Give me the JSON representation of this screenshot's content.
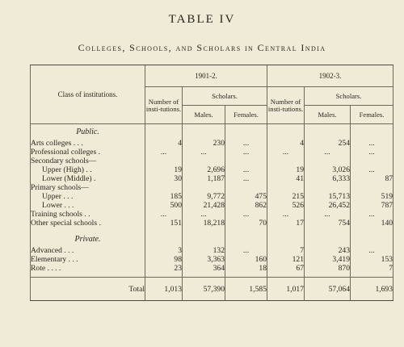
{
  "heading": {
    "number": "TABLE IV",
    "title": "Colleges, Schools, and Scholars in Central India"
  },
  "columns": {
    "class_header": "Class of institutions.",
    "year1": "1901-2.",
    "year2": "1902-3.",
    "number_header": "Number of insti-tutions.",
    "scholars_header": "Scholars.",
    "males": "Males.",
    "females": "Females."
  },
  "sections": [
    {
      "title": "Public.",
      "rows": [
        {
          "label": "Arts colleges . . .",
          "indent": false,
          "n1": "4",
          "m1": "230",
          "f1": "...",
          "n2": "4",
          "m2": "254",
          "f2": "..."
        },
        {
          "label": "Professional colleges .",
          "indent": false,
          "n1": "...",
          "m1": "...",
          "f1": "...",
          "n2": "...",
          "m2": "...",
          "f2": "..."
        },
        {
          "label": "Secondary schools—",
          "indent": false,
          "n1": "",
          "m1": "",
          "f1": "",
          "n2": "",
          "m2": "",
          "f2": ""
        },
        {
          "label": "Upper (High) . .",
          "indent": true,
          "n1": "19",
          "m1": "2,696",
          "f1": "...",
          "n2": "19",
          "m2": "3,026",
          "f2": "..."
        },
        {
          "label": "Lower (Middle) .",
          "indent": true,
          "n1": "30",
          "m1": "1,187",
          "f1": "...",
          "n2": "41",
          "m2": "6,333",
          "f2": "87"
        },
        {
          "label": "Primary schools—",
          "indent": false,
          "n1": "",
          "m1": "",
          "f1": "",
          "n2": "",
          "m2": "",
          "f2": ""
        },
        {
          "label": "Upper . . .",
          "indent": true,
          "n1": "185",
          "m1": "9,772",
          "f1": "475",
          "n2": "215",
          "m2": "15,713",
          "f2": "519"
        },
        {
          "label": "Lower . . .",
          "indent": true,
          "n1": "500",
          "m1": "21,428",
          "f1": "862",
          "n2": "526",
          "m2": "26,452",
          "f2": "787"
        },
        {
          "label": "Training schools . .",
          "indent": false,
          "n1": "...",
          "m1": "...",
          "f1": "...",
          "n2": "...",
          "m2": "...",
          "f2": "..."
        },
        {
          "label": "Other special schools .",
          "indent": false,
          "n1": "151",
          "m1": "18,218",
          "f1": "70",
          "n2": "17",
          "m2": "754",
          "f2": "140"
        }
      ]
    },
    {
      "title": "Private.",
      "rows": [
        {
          "label": "Advanced . . .",
          "indent": false,
          "n1": "3",
          "m1": "132",
          "f1": "...",
          "n2": "7",
          "m2": "243",
          "f2": "..."
        },
        {
          "label": "Elementary . . .",
          "indent": false,
          "n1": "98",
          "m1": "3,363",
          "f1": "160",
          "n2": "121",
          "m2": "3,419",
          "f2": "153"
        },
        {
          "label": "Rote . . . .",
          "indent": false,
          "n1": "23",
          "m1": "364",
          "f1": "18",
          "n2": "67",
          "m2": "870",
          "f2": "7"
        }
      ]
    }
  ],
  "total": {
    "label": "Total",
    "n1": "1,013",
    "m1": "57,390",
    "f1": "1,585",
    "n2": "1,017",
    "m2": "57,064",
    "f2": "1,693"
  }
}
